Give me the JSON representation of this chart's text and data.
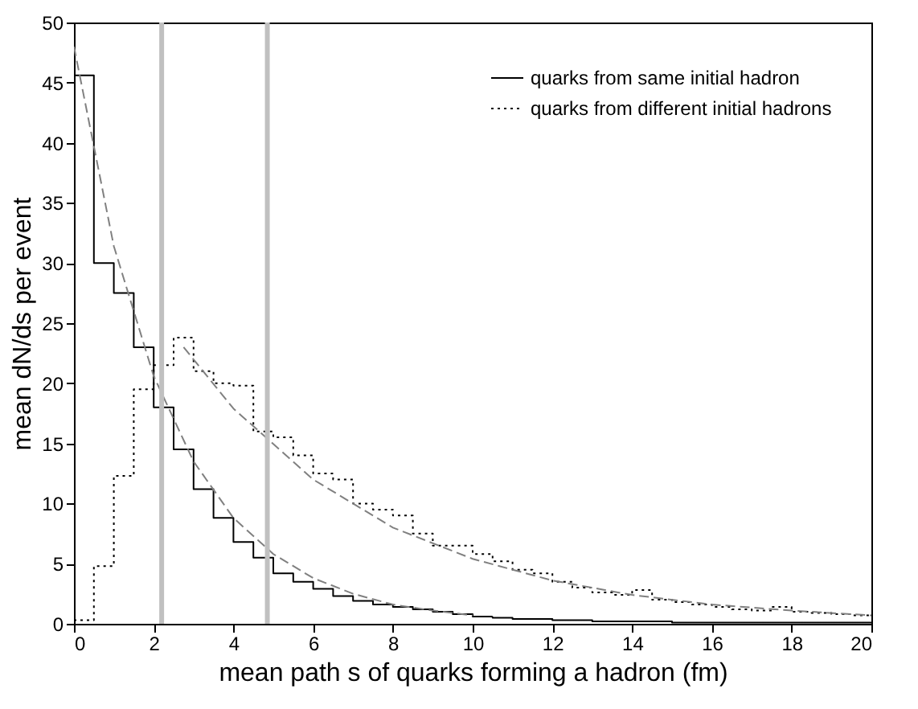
{
  "chart_data": {
    "type": "histogram",
    "xlabel": "mean path s of quarks forming a hadron (fm)",
    "ylabel": "mean dN/ds per event",
    "bins": [
      0,
      0.5,
      1,
      1.5,
      2,
      2.5,
      3,
      3.5,
      4,
      4.5,
      5,
      5.5,
      6,
      6.5,
      7,
      7.5,
      8,
      8.5,
      9,
      9.5,
      10,
      10.5,
      11,
      11.5,
      12,
      12.5,
      13,
      13.5,
      14,
      14.5,
      15,
      15.5,
      16,
      16.5,
      17,
      17.5,
      18,
      18.5,
      19,
      19.5,
      20
    ],
    "series": [
      {
        "name": "quarks from same initial hadron",
        "color": "#000000",
        "line_style": "solid",
        "values": [
          45.6,
          30,
          27.5,
          23,
          18,
          14.5,
          11.2,
          8.8,
          6.8,
          5.5,
          4.2,
          3.5,
          2.9,
          2.3,
          1.9,
          1.6,
          1.4,
          1.2,
          1.0,
          0.8,
          0.6,
          0.5,
          0.4,
          0.4,
          0.3,
          0.3,
          0.2,
          0.2,
          0.2,
          0.2,
          0.1,
          0.1,
          0.1,
          0.1,
          0.1,
          0.1,
          0.1,
          0.1,
          0.1,
          0.1
        ]
      },
      {
        "name": "quarks from different initial hadrons",
        "color": "#000000",
        "line_style": "dotted",
        "values": [
          0.3,
          4.8,
          12.3,
          19.5,
          21.5,
          23.8,
          21,
          20,
          19.8,
          16,
          15.5,
          14,
          12.5,
          12,
          10,
          9.5,
          9,
          7.5,
          6.5,
          6.5,
          5.8,
          5.2,
          4.5,
          4.2,
          3.5,
          3.0,
          2.6,
          2.4,
          2.8,
          2.0,
          1.8,
          1.6,
          1.4,
          1.2,
          1.1,
          1.4,
          1.0,
          0.9,
          0.8,
          0.7
        ]
      },
      {
        "type": "line",
        "color": "#808080",
        "line_style": "dashed",
        "x": [
          0,
          1,
          2,
          3,
          4,
          5,
          6,
          7,
          8,
          9,
          10
        ],
        "values": [
          48,
          31.4,
          20.6,
          13.5,
          8.8,
          5.8,
          3.8,
          2.5,
          1.6,
          1.1,
          0.7
        ]
      },
      {
        "type": "line",
        "color": "#808080",
        "line_style": "dashed",
        "x": [
          2.75,
          4,
          6,
          8,
          10,
          12,
          14,
          16,
          18,
          20
        ],
        "values": [
          23,
          17.9,
          12.0,
          8.0,
          5.4,
          3.6,
          2.4,
          1.6,
          1.1,
          0.7
        ]
      }
    ],
    "ref_lines": [
      {
        "axis": "x",
        "value": 2.2,
        "color": "#c0c0c0"
      },
      {
        "axis": "x",
        "value": 4.85,
        "color": "#c0c0c0"
      }
    ],
    "xlim": [
      0,
      20
    ],
    "xticks": [
      0,
      2,
      4,
      6,
      8,
      10,
      12,
      14,
      16,
      18,
      20
    ],
    "ylim": [
      0,
      50
    ],
    "yticks": [
      0,
      5,
      10,
      15,
      20,
      25,
      30,
      35,
      40,
      45,
      50
    ],
    "legend": "top right"
  }
}
